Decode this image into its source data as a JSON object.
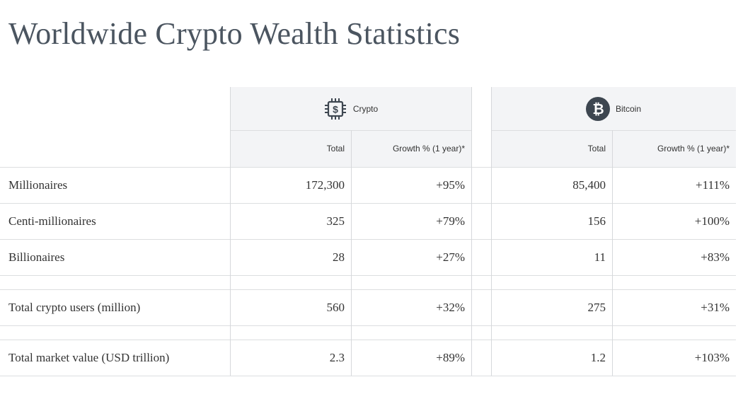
{
  "title": "Worldwide Crypto Wealth Statistics",
  "groups": {
    "crypto": {
      "label": "Crypto",
      "icon": "dollar-chip-icon"
    },
    "bitcoin": {
      "label": "Bitcoin",
      "icon": "bitcoin-icon"
    }
  },
  "subheaders": {
    "total": "Total",
    "growth": "Growth % (1 year)*"
  },
  "rows": [
    {
      "label": "Millionaires",
      "crypto_total": "172,300",
      "crypto_growth": "+95%",
      "btc_total": "85,400",
      "btc_growth": "+111%"
    },
    {
      "label": "Centi-millionaires",
      "crypto_total": "325",
      "crypto_growth": "+79%",
      "btc_total": "156",
      "btc_growth": "+100%"
    },
    {
      "label": "Billionaires",
      "crypto_total": "28",
      "crypto_growth": "+27%",
      "btc_total": "11",
      "btc_growth": "+83%"
    },
    {
      "label": "Total crypto users (million)",
      "crypto_total": "560",
      "crypto_growth": "+32%",
      "btc_total": "275",
      "btc_growth": "+31%"
    },
    {
      "label": "Total market value (USD trillion)",
      "crypto_total": "2.3",
      "crypto_growth": "+89%",
      "btc_total": "1.2",
      "btc_growth": "+103%"
    }
  ],
  "colors": {
    "header_band": "#f3f4f6",
    "title": "#4b5560",
    "bitcoin_badge": "#3d4650"
  }
}
